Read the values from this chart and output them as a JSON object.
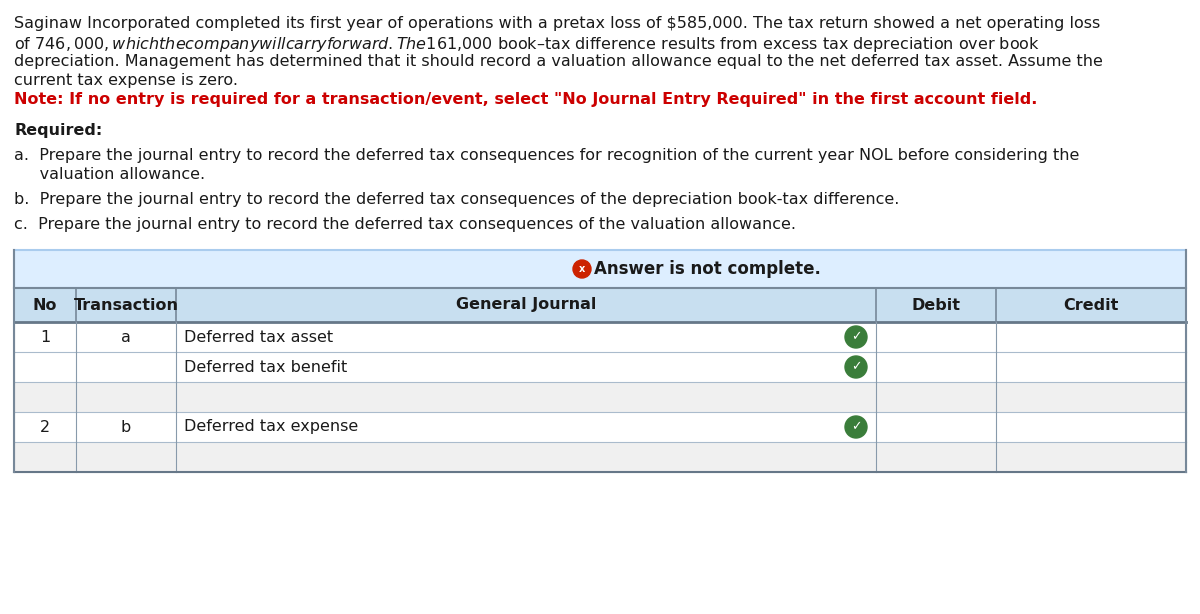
{
  "background_color": "#ffffff",
  "text_color": "#1a1a1a",
  "red_color": "#cc0000",
  "green_check_color": "#3a7d3a",
  "para_line1": "Saginaw Incorporated completed its first year of operations with a pretax loss of $585,000. The tax return showed a net operating loss",
  "para_line2": "of $746,000, which the company will carry forward. The $161,000 book–tax difference results from excess tax depreciation over book",
  "para_line3": "depreciation. Management has determined that it should record a valuation allowance equal to the net deferred tax asset. Assume the",
  "para_line4": "current tax expense is zero.",
  "note_text": "Note: If no entry is required for a transaction/event, select \"No Journal Entry Required\" in the first account field.",
  "required_text": "Required:",
  "item_a_line1": "a.  Prepare the journal entry to record the deferred tax consequences for recognition of the current year NOL before considering the",
  "item_a_line2": "     valuation allowance.",
  "item_b": "b.  Prepare the journal entry to record the deferred tax consequences of the depreciation book-tax difference.",
  "item_c": "c.  Prepare the journal entry to record the deferred tax consequences of the valuation allowance.",
  "answer_banner_text": "Answer is not complete.",
  "answer_banner_bg": "#ddeeff",
  "answer_banner_border": "#aaccee",
  "table_header_bg": "#c8dff0",
  "table_row_bg": "#ffffff",
  "table_alt_bg": "#f0f0f0",
  "col_no_label": "No",
  "col_transaction_label": "Transaction",
  "col_journal_label": "General Journal",
  "col_debit_label": "Debit",
  "col_credit_label": "Credit",
  "rows": [
    {
      "no": "1",
      "transaction": "a",
      "journal": "Deferred tax asset",
      "has_check": true
    },
    {
      "no": "",
      "transaction": "",
      "journal": "Deferred tax benefit",
      "has_check": true
    },
    {
      "no": "",
      "transaction": "",
      "journal": "",
      "has_check": false
    },
    {
      "no": "2",
      "transaction": "b",
      "journal": "Deferred tax expense",
      "has_check": true
    },
    {
      "no": "",
      "transaction": "",
      "journal": "",
      "has_check": false
    }
  ]
}
